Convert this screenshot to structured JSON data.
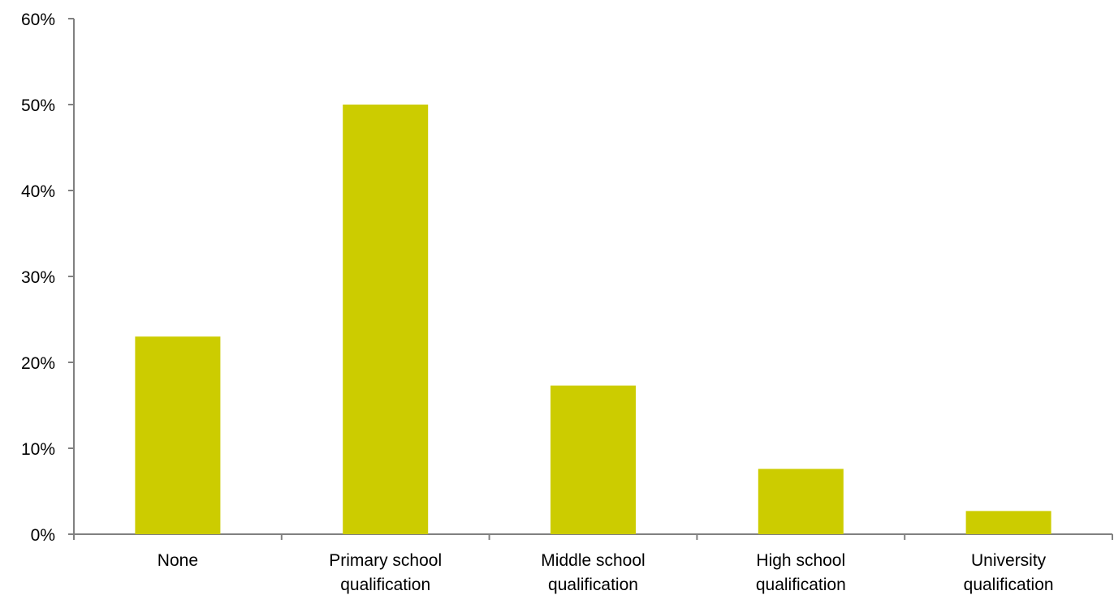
{
  "chart_data": {
    "type": "bar",
    "categories": [
      [
        "None"
      ],
      [
        "Primary school",
        "qualification"
      ],
      [
        "Middle school",
        "qualification"
      ],
      [
        "High school",
        "qualification"
      ],
      [
        "University",
        "qualification"
      ]
    ],
    "values": [
      23,
      50,
      17.3,
      7.6,
      2.7
    ],
    "y_ticks": [
      "0%",
      "10%",
      "20%",
      "30%",
      "40%",
      "50%",
      "60%"
    ],
    "ylim": [
      0,
      60
    ],
    "grid": false,
    "legend": "none",
    "title": "",
    "xlabel": "",
    "ylabel": "",
    "colors": {
      "bar": "#cccc00",
      "axis": "#808080",
      "text": "#000000"
    }
  }
}
